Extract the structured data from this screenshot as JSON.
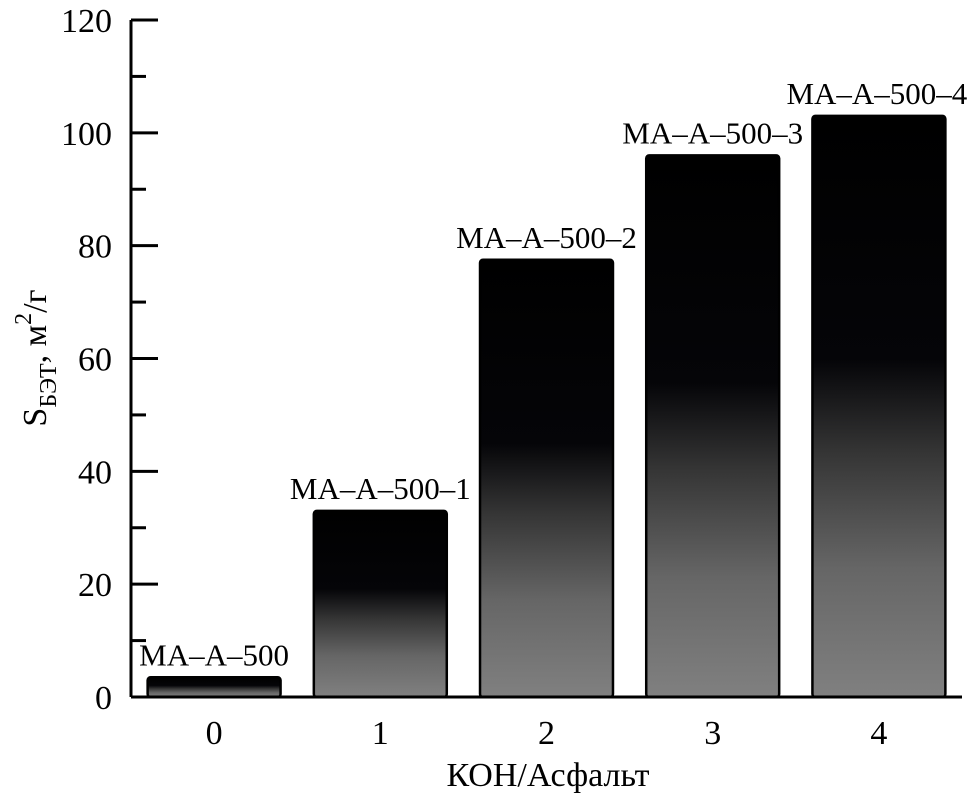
{
  "chart_data": {
    "type": "bar",
    "categories": [
      "0",
      "1",
      "2",
      "3",
      "4"
    ],
    "values": [
      3.5,
      33,
      77.5,
      96,
      103
    ],
    "bar_labels": [
      "MA–A–500",
      "MA–A–500–1",
      "MA–A–500–2",
      "MA–A–500–3",
      "MA–A–500–4"
    ],
    "xlabel": "КОН/Асфальт",
    "ylabel": {
      "main": "S",
      "subscript": "БЭТ",
      "unit_prefix": ", м",
      "superscript": "2",
      "unit_suffix": "/г"
    },
    "ylim": [
      0,
      120
    ],
    "yticks": [
      "0",
      "20",
      "40",
      "60",
      "80",
      "100",
      "120"
    ],
    "y_minor_step": 10,
    "bar_style": "vertical gradient: black at top, gray at bottom",
    "colors": {
      "bar_top": "#000000",
      "bar_bottom": "#808080",
      "axis": "#000000"
    },
    "grid": false,
    "legend": "none"
  }
}
